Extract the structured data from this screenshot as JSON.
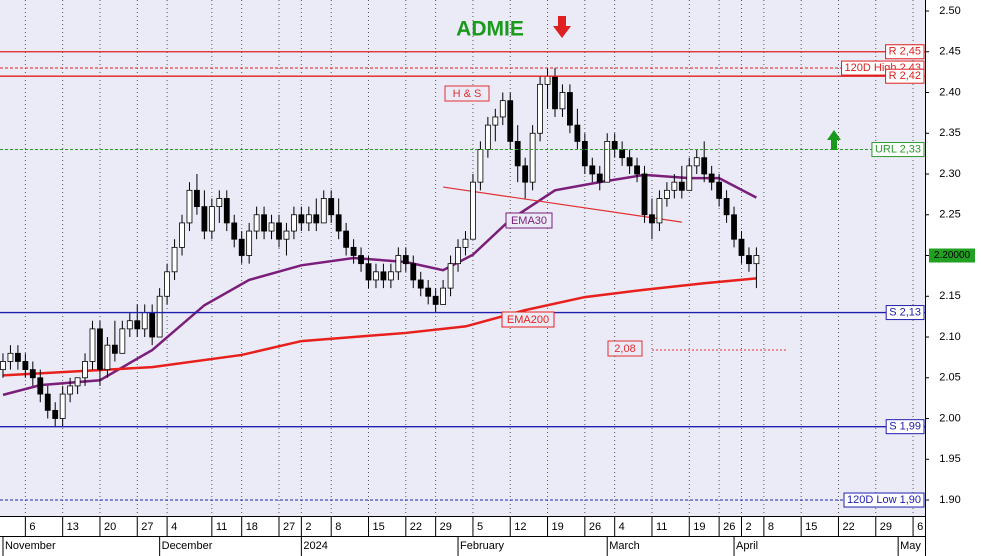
{
  "chart_data": {
    "type": "candlestick",
    "title": "ADMIE",
    "candles": [
      [
        2.06,
        2.08,
        2.05,
        2.07
      ],
      [
        2.07,
        2.09,
        2.06,
        2.08
      ],
      [
        2.08,
        2.09,
        2.06,
        2.07
      ],
      [
        2.07,
        2.08,
        2.05,
        2.06
      ],
      [
        2.06,
        2.07,
        2.04,
        2.05
      ],
      [
        2.05,
        2.06,
        2.02,
        2.03
      ],
      [
        2.03,
        2.04,
        2.0,
        2.01
      ],
      [
        2.01,
        2.02,
        1.99,
        2.0
      ],
      [
        2.0,
        2.04,
        1.99,
        2.03
      ],
      [
        2.03,
        2.05,
        2.02,
        2.04
      ],
      [
        2.04,
        2.05,
        2.03,
        2.05
      ],
      [
        2.05,
        2.08,
        2.04,
        2.07
      ],
      [
        2.07,
        2.12,
        2.06,
        2.11
      ],
      [
        2.11,
        2.12,
        2.04,
        2.06
      ],
      [
        2.06,
        2.1,
        2.05,
        2.09
      ],
      [
        2.09,
        2.12,
        2.07,
        2.08
      ],
      [
        2.08,
        2.12,
        2.08,
        2.11
      ],
      [
        2.11,
        2.13,
        2.1,
        2.12
      ],
      [
        2.12,
        2.14,
        2.1,
        2.11
      ],
      [
        2.11,
        2.14,
        2.1,
        2.13
      ],
      [
        2.13,
        2.14,
        2.09,
        2.1
      ],
      [
        2.1,
        2.16,
        2.1,
        2.15
      ],
      [
        2.15,
        2.19,
        2.14,
        2.18
      ],
      [
        2.18,
        2.22,
        2.17,
        2.21
      ],
      [
        2.21,
        2.25,
        2.2,
        2.24
      ],
      [
        2.24,
        2.29,
        2.23,
        2.28
      ],
      [
        2.28,
        2.3,
        2.25,
        2.26
      ],
      [
        2.26,
        2.28,
        2.22,
        2.23
      ],
      [
        2.23,
        2.27,
        2.22,
        2.26
      ],
      [
        2.26,
        2.28,
        2.24,
        2.27
      ],
      [
        2.27,
        2.28,
        2.23,
        2.24
      ],
      [
        2.24,
        2.25,
        2.21,
        2.22
      ],
      [
        2.22,
        2.23,
        2.19,
        2.2
      ],
      [
        2.2,
        2.24,
        2.19,
        2.23
      ],
      [
        2.23,
        2.26,
        2.22,
        2.25
      ],
      [
        2.25,
        2.26,
        2.22,
        2.23
      ],
      [
        2.23,
        2.25,
        2.22,
        2.24
      ],
      [
        2.24,
        2.25,
        2.21,
        2.22
      ],
      [
        2.22,
        2.24,
        2.2,
        2.23
      ],
      [
        2.23,
        2.26,
        2.22,
        2.25
      ],
      [
        2.25,
        2.26,
        2.23,
        2.24
      ],
      [
        2.24,
        2.26,
        2.23,
        2.25
      ],
      [
        2.25,
        2.27,
        2.23,
        2.24
      ],
      [
        2.24,
        2.28,
        2.24,
        2.27
      ],
      [
        2.27,
        2.28,
        2.24,
        2.25
      ],
      [
        2.25,
        2.27,
        2.22,
        2.23
      ],
      [
        2.23,
        2.24,
        2.2,
        2.21
      ],
      [
        2.21,
        2.22,
        2.19,
        2.2
      ],
      [
        2.2,
        2.21,
        2.18,
        2.19
      ],
      [
        2.19,
        2.2,
        2.16,
        2.17
      ],
      [
        2.17,
        2.19,
        2.16,
        2.18
      ],
      [
        2.18,
        2.19,
        2.16,
        2.17
      ],
      [
        2.17,
        2.19,
        2.16,
        2.18
      ],
      [
        2.18,
        2.21,
        2.17,
        2.2
      ],
      [
        2.2,
        2.21,
        2.18,
        2.19
      ],
      [
        2.19,
        2.2,
        2.16,
        2.17
      ],
      [
        2.17,
        2.18,
        2.15,
        2.16
      ],
      [
        2.16,
        2.17,
        2.14,
        2.15
      ],
      [
        2.15,
        2.16,
        2.13,
        2.14
      ],
      [
        2.14,
        2.17,
        2.14,
        2.16
      ],
      [
        2.16,
        2.2,
        2.15,
        2.19
      ],
      [
        2.19,
        2.22,
        2.18,
        2.21
      ],
      [
        2.21,
        2.23,
        2.2,
        2.22
      ],
      [
        2.22,
        2.3,
        2.22,
        2.29
      ],
      [
        2.29,
        2.34,
        2.28,
        2.33
      ],
      [
        2.33,
        2.37,
        2.32,
        2.36
      ],
      [
        2.36,
        2.38,
        2.34,
        2.37
      ],
      [
        2.37,
        2.4,
        2.36,
        2.39
      ],
      [
        2.39,
        2.4,
        2.33,
        2.34
      ],
      [
        2.34,
        2.36,
        2.29,
        2.31
      ],
      [
        2.31,
        2.32,
        2.27,
        2.29
      ],
      [
        2.29,
        2.36,
        2.28,
        2.35
      ],
      [
        2.35,
        2.42,
        2.34,
        2.41
      ],
      [
        2.41,
        2.43,
        2.38,
        2.42
      ],
      [
        2.42,
        2.43,
        2.37,
        2.38
      ],
      [
        2.38,
        2.41,
        2.37,
        2.4
      ],
      [
        2.4,
        2.41,
        2.35,
        2.36
      ],
      [
        2.36,
        2.38,
        2.33,
        2.34
      ],
      [
        2.34,
        2.35,
        2.3,
        2.31
      ],
      [
        2.31,
        2.32,
        2.29,
        2.3
      ],
      [
        2.3,
        2.31,
        2.28,
        2.29
      ],
      [
        2.29,
        2.35,
        2.29,
        2.34
      ],
      [
        2.34,
        2.35,
        2.32,
        2.33
      ],
      [
        2.33,
        2.34,
        2.31,
        2.32
      ],
      [
        2.32,
        2.33,
        2.3,
        2.31
      ],
      [
        2.31,
        2.32,
        2.29,
        2.3
      ],
      [
        2.3,
        2.31,
        2.24,
        2.25
      ],
      [
        2.25,
        2.27,
        2.22,
        2.24
      ],
      [
        2.24,
        2.28,
        2.23,
        2.27
      ],
      [
        2.27,
        2.29,
        2.26,
        2.28
      ],
      [
        2.28,
        2.3,
        2.27,
        2.29
      ],
      [
        2.29,
        2.31,
        2.27,
        2.28
      ],
      [
        2.28,
        2.32,
        2.28,
        2.31
      ],
      [
        2.31,
        2.33,
        2.3,
        2.32
      ],
      [
        2.32,
        2.34,
        2.29,
        2.3
      ],
      [
        2.3,
        2.31,
        2.28,
        2.29
      ],
      [
        2.29,
        2.3,
        2.26,
        2.27
      ],
      [
        2.27,
        2.28,
        2.24,
        2.25
      ],
      [
        2.25,
        2.26,
        2.21,
        2.22
      ],
      [
        2.22,
        2.23,
        2.19,
        2.2
      ],
      [
        2.2,
        2.21,
        2.18,
        2.19
      ],
      [
        2.19,
        2.21,
        2.16,
        2.2
      ]
    ],
    "up_color": "#ffffff",
    "down_color": "#000000",
    "xlim": [
      -0.4,
      123.6
    ],
    "xticks": [
      {
        "value": 3,
        "label": "6"
      },
      {
        "value": 8,
        "label": "13"
      },
      {
        "value": 13,
        "label": "20"
      },
      {
        "value": 18,
        "label": "27"
      },
      {
        "value": 22,
        "label": "4"
      },
      {
        "value": 28,
        "label": "11"
      },
      {
        "value": 32,
        "label": "18"
      },
      {
        "value": 37,
        "label": "27"
      },
      {
        "value": 40,
        "label": "2"
      },
      {
        "value": 44,
        "label": "8"
      },
      {
        "value": 49,
        "label": "15"
      },
      {
        "value": 54,
        "label": "22"
      },
      {
        "value": 58,
        "label": "29"
      },
      {
        "value": 63,
        "label": "5"
      },
      {
        "value": 68,
        "label": "12"
      },
      {
        "value": 73,
        "label": "19"
      },
      {
        "value": 78,
        "label": "26"
      },
      {
        "value": 82,
        "label": "4"
      },
      {
        "value": 87,
        "label": "11"
      },
      {
        "value": 92,
        "label": "19"
      },
      {
        "value": 96,
        "label": "26"
      },
      {
        "value": 99,
        "label": "2"
      },
      {
        "value": 102,
        "label": "8"
      },
      {
        "value": 107,
        "label": "15"
      },
      {
        "value": 112,
        "label": "22"
      },
      {
        "value": 117,
        "label": "29"
      },
      {
        "value": 122,
        "label": "6"
      }
    ],
    "month_labels": [
      {
        "value": 0,
        "label": "November"
      },
      {
        "value": 21,
        "label": "December"
      },
      {
        "value": 40,
        "label": "2024"
      },
      {
        "value": 61,
        "label": "February"
      },
      {
        "value": 81,
        "label": "March"
      },
      {
        "value": 98,
        "label": "April"
      },
      {
        "value": 120,
        "label": "May"
      }
    ],
    "ylim": [
      1.8804,
      2.5135
    ],
    "yticks": [
      {
        "value": 1.9,
        "label": "1.90"
      },
      {
        "value": 1.95,
        "label": "1.95"
      },
      {
        "value": 2.0,
        "label": "2.00"
      },
      2.05,
      {
        "value": 2.1,
        "label": "2.10"
      },
      2.15,
      {
        "value": 2.2,
        "label": "2.20"
      },
      2.25,
      {
        "value": 2.3,
        "label": "2.30"
      },
      2.35,
      {
        "value": 2.4,
        "label": "2.40"
      },
      2.45,
      {
        "value": 2.5,
        "label": "2.50"
      }
    ],
    "grid": "x",
    "overlays": [
      {
        "name": "EMA30",
        "color": "#7a1e7a",
        "x": [
          0,
          5,
          13,
          20,
          27,
          33,
          40,
          47,
          54,
          59,
          63,
          68,
          74,
          80,
          86,
          92,
          96,
          101
        ],
        "values": [
          2.029,
          2.041,
          2.047,
          2.084,
          2.139,
          2.17,
          2.188,
          2.197,
          2.192,
          2.182,
          2.201,
          2.244,
          2.28,
          2.29,
          2.299,
          2.295,
          2.295,
          2.271
        ]
      },
      {
        "name": "EMA200",
        "color": "#e8201c",
        "x": [
          0,
          20,
          32,
          40,
          54,
          62,
          70,
          78,
          86,
          94,
          101
        ],
        "values": [
          2.053,
          2.063,
          2.078,
          2.095,
          2.105,
          2.113,
          2.133,
          2.149,
          2.158,
          2.166,
          2.172
        ]
      }
    ],
    "neckline": {
      "label": "H & S",
      "x": [
        59,
        91
      ],
      "values": [
        2.284,
        2.241
      ],
      "color": "#e03030"
    },
    "levels": [
      {
        "value": 2.45,
        "label": "R 2,45",
        "color": "#e02020",
        "style": "solid"
      },
      {
        "value": 2.43,
        "label": "120D High 2,43",
        "color": "#e02020",
        "style": "dashed"
      },
      {
        "value": 2.42,
        "label": "R 2,42",
        "color": "#e02020",
        "style": "solid"
      },
      {
        "value": 2.33,
        "label": "URL 2,33",
        "color": "#2a9a2a",
        "style": "dashed"
      },
      {
        "value": 2.13,
        "label": "S 2,13",
        "color": "#2020b0",
        "style": "solid"
      },
      {
        "value": 1.99,
        "label": "S 1,99",
        "color": "#2020b0",
        "style": "solid"
      },
      {
        "value": 1.9,
        "label": "120D Low 1,90",
        "color": "#2020b0",
        "style": "dashed"
      }
    ],
    "stop": {
      "label": "2,08",
      "x": [
        87,
        105
      ],
      "value": 2.084,
      "color": "#e03030"
    },
    "last_price": {
      "value": 2.2,
      "label": "2.20000",
      "color": "#22a022"
    }
  }
}
